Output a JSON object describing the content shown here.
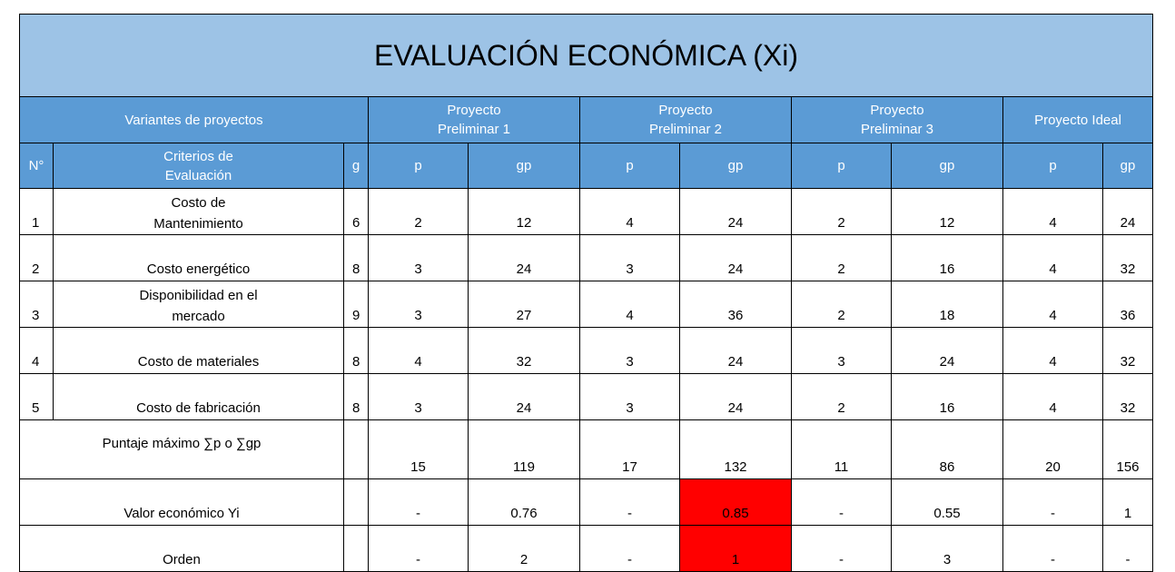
{
  "title": "EVALUACIÓN ECONÓMICA (Xi)",
  "header": {
    "variantes": "Variantes de proyectos",
    "p1_line1": "Proyecto",
    "p1_line2": "Preliminar 1",
    "p2_line1": "Proyecto",
    "p2_line2": "Preliminar 2",
    "p3_line1": "Proyecto",
    "p3_line2": "Preliminar 3",
    "ideal": "Proyecto Ideal",
    "num": "N°",
    "criterios_line1": "Criterios de",
    "criterios_line2": "Evaluación",
    "g": "g",
    "p": "p",
    "gp": "gp"
  },
  "rows": [
    {
      "n": "1",
      "crit1": "Costo de",
      "crit2": "Mantenimiento",
      "g": "6",
      "p1": "2",
      "gp1": "12",
      "p2": "4",
      "gp2": "24",
      "p3": "2",
      "gp3": "12",
      "pi": "4",
      "gpi": "24"
    },
    {
      "n": "2",
      "crit1": "",
      "crit2": "Costo energético",
      "g": "8",
      "p1": "3",
      "gp1": "24",
      "p2": "3",
      "gp2": "24",
      "p3": "2",
      "gp3": "16",
      "pi": "4",
      "gpi": "32"
    },
    {
      "n": "3",
      "crit1": "Disponibilidad en el",
      "crit2": "mercado",
      "g": "9",
      "p1": "3",
      "gp1": "27",
      "p2": "4",
      "gp2": "36",
      "p3": "2",
      "gp3": "18",
      "pi": "4",
      "gpi": "36"
    },
    {
      "n": "4",
      "crit1": "",
      "crit2": "Costo de materiales",
      "g": "8",
      "p1": "4",
      "gp1": "32",
      "p2": "3",
      "gp2": "24",
      "p3": "3",
      "gp3": "24",
      "pi": "4",
      "gpi": "32"
    },
    {
      "n": "5",
      "crit1": "",
      "crit2": "Costo de fabricación",
      "g": "8",
      "p1": "3",
      "gp1": "24",
      "p2": "3",
      "gp2": "24",
      "p3": "2",
      "gp3": "16",
      "pi": "4",
      "gpi": "32"
    }
  ],
  "puntaje": {
    "label": "Puntaje máximo ∑p o ∑gp",
    "p1": "15",
    "gp1": "119",
    "p2": "17",
    "gp2": "132",
    "p3": "11",
    "gp3": "86",
    "pi": "20",
    "gpi": "156"
  },
  "valor": {
    "label": "Valor económico Yi",
    "p1": "-",
    "gp1": "0.76",
    "p2": "-",
    "gp2": "0.85",
    "p3": "-",
    "gp3": "0.55",
    "pi": "-",
    "gpi": "1"
  },
  "orden": {
    "label": "Orden",
    "p1": "-",
    "gp1": "2",
    "p2": "-",
    "gp2": "1",
    "p3": "-",
    "gp3": "3",
    "pi": "-",
    "gpi": "-"
  },
  "colors": {
    "title_bg": "#9dc3e6",
    "header_bg": "#5b9bd5",
    "highlight": "#ff0000"
  }
}
